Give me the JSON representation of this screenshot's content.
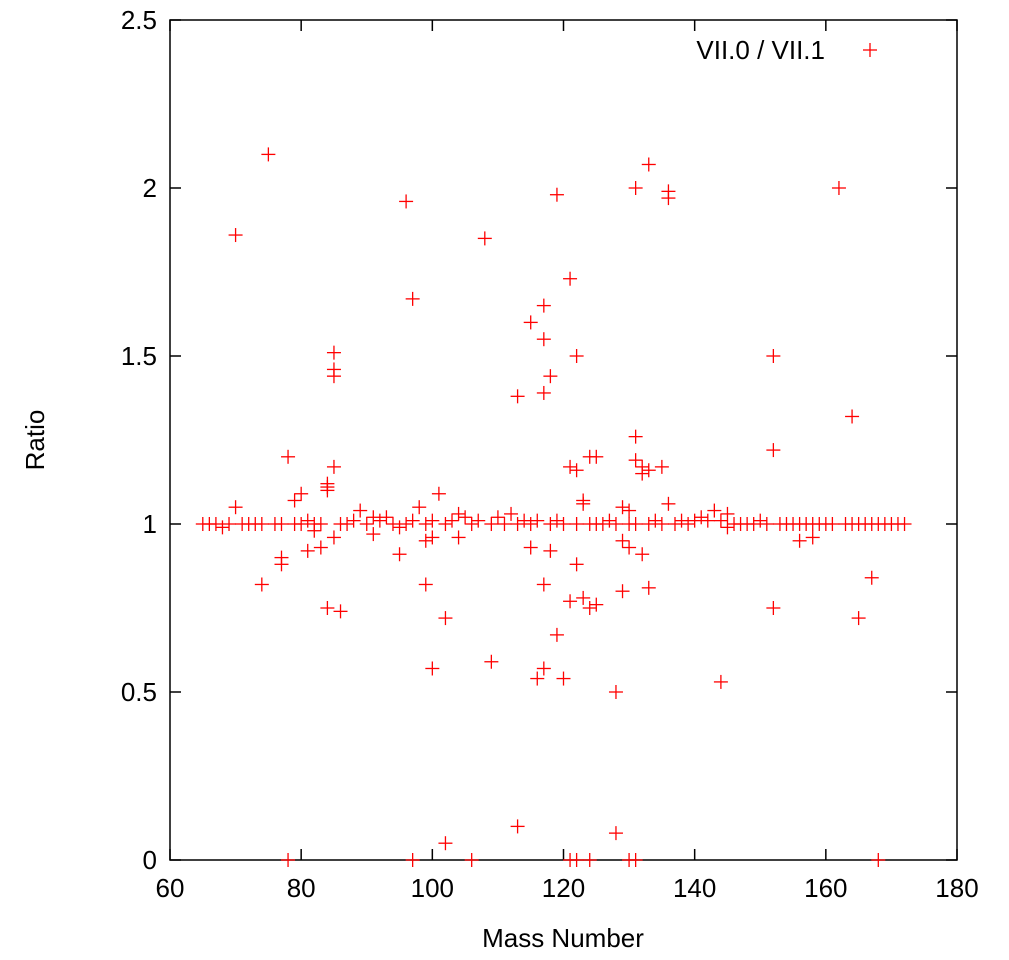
{
  "chart_data": {
    "type": "scatter",
    "title": "",
    "xlabel": "Mass Number",
    "ylabel": "Ratio",
    "xlim": [
      60,
      180
    ],
    "ylim": [
      0,
      2.5
    ],
    "xticks": [
      60,
      80,
      100,
      120,
      140,
      160,
      180
    ],
    "yticks": [
      0,
      0.5,
      1,
      1.5,
      2,
      2.5
    ],
    "ytick_labels": [
      "0",
      "0.5",
      "1",
      "1.5",
      "2",
      "2.5"
    ],
    "grid": false,
    "legend_position": "top-right",
    "series": [
      {
        "name": "VII.0 / VII.1",
        "color": "#ff0000",
        "marker": "plus",
        "points": [
          [
            70,
            1.86
          ],
          [
            75,
            2.1
          ],
          [
            96,
            1.96
          ],
          [
            97,
            1.67
          ],
          [
            108,
            1.85
          ],
          [
            119,
            1.98
          ],
          [
            121,
            1.73
          ],
          [
            117,
            1.65
          ],
          [
            115,
            1.6
          ],
          [
            117,
            1.55
          ],
          [
            122,
            1.5
          ],
          [
            118,
            1.44
          ],
          [
            117,
            1.39
          ],
          [
            113,
            1.38
          ],
          [
            131,
            2.0
          ],
          [
            133,
            2.07
          ],
          [
            136,
            1.99
          ],
          [
            136,
            1.97
          ],
          [
            162,
            2.0
          ],
          [
            152,
            1.5
          ],
          [
            164,
            1.32
          ],
          [
            152,
            1.22
          ],
          [
            85,
            1.51
          ],
          [
            85,
            1.46
          ],
          [
            85,
            1.44
          ],
          [
            78,
            1.2
          ],
          [
            85,
            1.17
          ],
          [
            84,
            1.12
          ],
          [
            84,
            1.11
          ],
          [
            84,
            1.1
          ],
          [
            80,
            1.09
          ],
          [
            79,
            1.07
          ],
          [
            70,
            1.05
          ],
          [
            101,
            1.09
          ],
          [
            98,
            1.05
          ],
          [
            131,
            1.26
          ],
          [
            131,
            1.19
          ],
          [
            132,
            1.17
          ],
          [
            132,
            1.15
          ],
          [
            133,
            1.16
          ],
          [
            135,
            1.17
          ],
          [
            124,
            1.2
          ],
          [
            125,
            1.2
          ],
          [
            121,
            1.17
          ],
          [
            122,
            1.16
          ],
          [
            123,
            1.07
          ],
          [
            123,
            1.06
          ],
          [
            136,
            1.06
          ],
          [
            129,
            1.05
          ],
          [
            130,
            1.04
          ],
          [
            110,
            1.02
          ],
          [
            112,
            1.03
          ],
          [
            104,
            1.03
          ],
          [
            89,
            1.04
          ],
          [
            93,
            1.02
          ],
          [
            143,
            1.04
          ],
          [
            145,
            1.03
          ],
          [
            150,
            1.01
          ],
          [
            65,
            1.0
          ],
          [
            66,
            1.0
          ],
          [
            67,
            1.0
          ],
          [
            68,
            0.99
          ],
          [
            69,
            1.0
          ],
          [
            71,
            1.0
          ],
          [
            72,
            1.0
          ],
          [
            73,
            1.0
          ],
          [
            74,
            1.0
          ],
          [
            76,
            1.0
          ],
          [
            77,
            1.0
          ],
          [
            79,
            1.0
          ],
          [
            80,
            1.0
          ],
          [
            81,
            1.01
          ],
          [
            82,
            1.0
          ],
          [
            83,
            1.0
          ],
          [
            86,
            1.0
          ],
          [
            87,
            1.0
          ],
          [
            88,
            1.01
          ],
          [
            90,
            1.0
          ],
          [
            91,
            1.02
          ],
          [
            92,
            1.01
          ],
          [
            94,
            1.0
          ],
          [
            95,
            0.99
          ],
          [
            96,
            1.0
          ],
          [
            97,
            1.01
          ],
          [
            99,
            1.0
          ],
          [
            100,
            1.01
          ],
          [
            102,
            1.0
          ],
          [
            103,
            1.01
          ],
          [
            105,
            1.02
          ],
          [
            106,
            1.0
          ],
          [
            107,
            1.01
          ],
          [
            109,
            1.0
          ],
          [
            111,
            1.0
          ],
          [
            113,
            1.0
          ],
          [
            114,
            1.01
          ],
          [
            115,
            1.0
          ],
          [
            116,
            1.01
          ],
          [
            118,
            1.0
          ],
          [
            119,
            1.01
          ],
          [
            120,
            1.0
          ],
          [
            122,
            1.0
          ],
          [
            124,
            1.0
          ],
          [
            125,
            1.0
          ],
          [
            126,
            1.0
          ],
          [
            127,
            1.01
          ],
          [
            128,
            1.0
          ],
          [
            130,
            1.0
          ],
          [
            131,
            1.0
          ],
          [
            133,
            1.0
          ],
          [
            134,
            1.01
          ],
          [
            135,
            1.0
          ],
          [
            137,
            1.0
          ],
          [
            138,
            1.01
          ],
          [
            139,
            1.0
          ],
          [
            140,
            1.01
          ],
          [
            141,
            1.02
          ],
          [
            142,
            1.01
          ],
          [
            144,
            1.01
          ],
          [
            146,
            1.0
          ],
          [
            147,
            1.0
          ],
          [
            148,
            1.0
          ],
          [
            149,
            1.0
          ],
          [
            151,
            1.0
          ],
          [
            153,
            1.0
          ],
          [
            154,
            1.0
          ],
          [
            155,
            1.0
          ],
          [
            156,
            1.0
          ],
          [
            157,
            1.0
          ],
          [
            158,
            1.0
          ],
          [
            159,
            1.0
          ],
          [
            160,
            1.0
          ],
          [
            161,
            1.0
          ],
          [
            163,
            1.0
          ],
          [
            164,
            1.0
          ],
          [
            165,
            1.0
          ],
          [
            166,
            1.0
          ],
          [
            167,
            1.0
          ],
          [
            168,
            1.0
          ],
          [
            169,
            1.0
          ],
          [
            170,
            1.0
          ],
          [
            171,
            1.0
          ],
          [
            172,
            1.0
          ],
          [
            82,
            0.98
          ],
          [
            85,
            0.96
          ],
          [
            91,
            0.97
          ],
          [
            100,
            0.96
          ],
          [
            99,
            0.95
          ],
          [
            104,
            0.96
          ],
          [
            115,
            0.93
          ],
          [
            118,
            0.92
          ],
          [
            129,
            0.95
          ],
          [
            130,
            0.93
          ],
          [
            132,
            0.91
          ],
          [
            145,
            0.99
          ],
          [
            156,
            0.95
          ],
          [
            158,
            0.96
          ],
          [
            77,
            0.9
          ],
          [
            77,
            0.88
          ],
          [
            81,
            0.92
          ],
          [
            83,
            0.93
          ],
          [
            95,
            0.91
          ],
          [
            74,
            0.82
          ],
          [
            99,
            0.82
          ],
          [
            117,
            0.82
          ],
          [
            122,
            0.88
          ],
          [
            123,
            0.78
          ],
          [
            121,
            0.77
          ],
          [
            124,
            0.75
          ],
          [
            125,
            0.76
          ],
          [
            129,
            0.8
          ],
          [
            133,
            0.81
          ],
          [
            84,
            0.75
          ],
          [
            86,
            0.74
          ],
          [
            102,
            0.72
          ],
          [
            152,
            0.75
          ],
          [
            165,
            0.72
          ],
          [
            167,
            0.84
          ],
          [
            119,
            0.67
          ],
          [
            109,
            0.59
          ],
          [
            100,
            0.57
          ],
          [
            117,
            0.57
          ],
          [
            116,
            0.54
          ],
          [
            120,
            0.54
          ],
          [
            128,
            0.5
          ],
          [
            144,
            0.53
          ],
          [
            113,
            0.1
          ],
          [
            102,
            0.05
          ],
          [
            128,
            0.08
          ],
          [
            78,
            0.0
          ],
          [
            97,
            0.0
          ],
          [
            106,
            0.0
          ],
          [
            121,
            0.0
          ],
          [
            122,
            0.0
          ],
          [
            124,
            0.0
          ],
          [
            130,
            0.0
          ],
          [
            131,
            0.0
          ],
          [
            168,
            0.0
          ]
        ]
      }
    ]
  }
}
